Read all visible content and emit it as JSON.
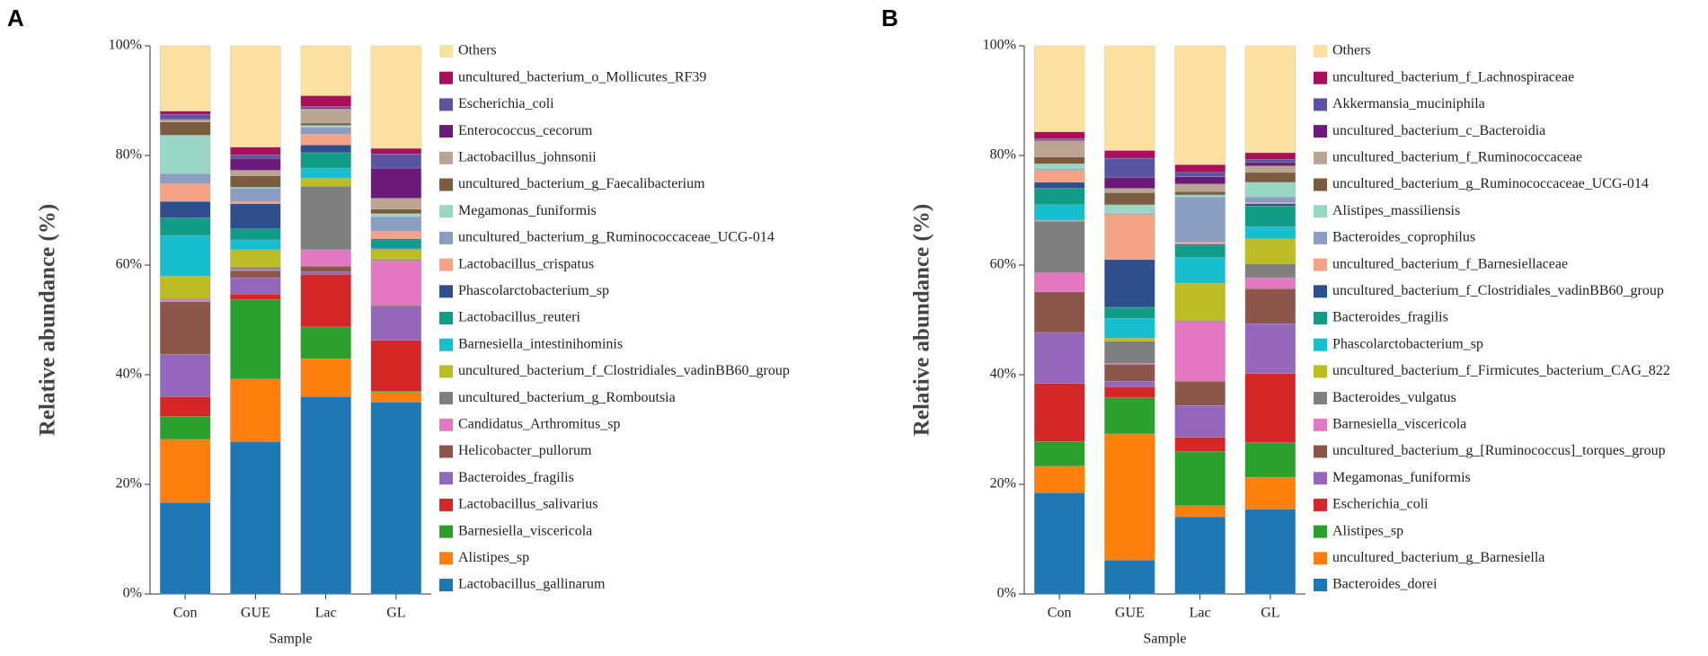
{
  "chart_data": [
    {
      "type": "bar",
      "stacked": true,
      "label": "A",
      "ylabel": "Relative abundance (%)",
      "xlabel": "Sample",
      "categories": [
        "Con",
        "GUE",
        "Lac",
        "GL"
      ],
      "ylim": [
        0,
        100
      ],
      "yticks": [
        {
          "value": 0,
          "label": "0%"
        },
        {
          "value": 20,
          "label": "20%"
        },
        {
          "value": 40,
          "label": "40%"
        },
        {
          "value": 60,
          "label": "60%"
        },
        {
          "value": 80,
          "label": "80%"
        },
        {
          "value": 100,
          "label": "100%"
        }
      ],
      "series": [
        {
          "name": "Lactobacillus_gallinarum",
          "color": "#1f77b4",
          "values": [
            16.7,
            27.8,
            36.0,
            35.0
          ]
        },
        {
          "name": "Alistipes_sp",
          "color": "#ff7f0e",
          "values": [
            11.5,
            11.4,
            6.9,
            1.8
          ]
        },
        {
          "name": "Barnesiella_viscericola",
          "color": "#2ca02c",
          "values": [
            4.2,
            14.5,
            5.8,
            0.2
          ]
        },
        {
          "name": "Lactobacillus_salivarius",
          "color": "#d62728",
          "values": [
            3.6,
            1.0,
            9.6,
            9.3
          ]
        },
        {
          "name": "Bacteroides_fragilis",
          "color": "#9467bd",
          "values": [
            7.7,
            3.0,
            0.5,
            6.2
          ]
        },
        {
          "name": "Helicobacter_pullorum",
          "color": "#8c564b",
          "values": [
            9.6,
            1.3,
            1.0,
            0.2
          ]
        },
        {
          "name": "Candidatus_Arthromitus_sp",
          "color": "#e377c2",
          "values": [
            0.4,
            0.2,
            3.0,
            8.1
          ]
        },
        {
          "name": "uncultured_bacterium_g_Romboutsia",
          "color": "#7f7f7f",
          "values": [
            0.2,
            0.4,
            11.6,
            0.2
          ]
        },
        {
          "name": "uncultured_bacterium_f_Clostridiales_vadinBB60_group",
          "color": "#bcbd22",
          "values": [
            4.1,
            3.2,
            1.5,
            1.8
          ]
        },
        {
          "name": "Barnesiella_intestinihominis",
          "color": "#17becf",
          "values": [
            7.4,
            1.8,
            1.8,
            0.2
          ]
        },
        {
          "name": "Lactobacillus_reuteri",
          "color": "#109d87",
          "values": [
            3.2,
            2.0,
            2.8,
            1.6
          ]
        },
        {
          "name": "Phascolarctobacterium_sp",
          "color": "#2e4f8e",
          "values": [
            3.0,
            4.6,
            1.4,
            0.2
          ]
        },
        {
          "name": "Lactobacillus_crispatus",
          "color": "#f4a386",
          "values": [
            3.3,
            0.4,
            2.0,
            1.4
          ]
        },
        {
          "name": "uncultured_bacterium_g_Ruminococcaceae_UCG-014",
          "color": "#8b9dc3",
          "values": [
            1.8,
            2.4,
            1.2,
            2.6
          ]
        },
        {
          "name": "Megamonas_funiformis",
          "color": "#9ad6c6",
          "values": [
            7.0,
            0.2,
            0.4,
            0.6
          ]
        },
        {
          "name": "uncultured_bacterium_g_Faecalibacterium",
          "color": "#7b5c3e",
          "values": [
            2.4,
            2.1,
            0.4,
            0.8
          ]
        },
        {
          "name": "Lactobacillus_johnsonii",
          "color": "#b9a591",
          "values": [
            0.4,
            1.0,
            2.6,
            2.0
          ]
        },
        {
          "name": "Enterococcus_cecorum",
          "color": "#6b1a7b",
          "values": [
            0.2,
            2.2,
            0.2,
            5.5
          ]
        },
        {
          "name": "Escherichia_coli",
          "color": "#5a55a2",
          "values": [
            0.8,
            0.6,
            0.2,
            2.6
          ]
        },
        {
          "name": "uncultured_bacterium_o_Mollicutes_RF39",
          "color": "#a8105c",
          "values": [
            0.6,
            1.4,
            2.0,
            1.0
          ]
        },
        {
          "name": "Others",
          "color": "#fde0a0",
          "values": [
            11.9,
            18.5,
            9.1,
            18.7
          ]
        }
      ]
    },
    {
      "type": "bar",
      "stacked": true,
      "label": "B",
      "ylabel": "Relative abundance (%)",
      "xlabel": "Sample",
      "categories": [
        "Con",
        "GUE",
        "Lac",
        "GL"
      ],
      "ylim": [
        0,
        100
      ],
      "yticks": [
        {
          "value": 0,
          "label": "0%"
        },
        {
          "value": 20,
          "label": "20%"
        },
        {
          "value": 40,
          "label": "40%"
        },
        {
          "value": 60,
          "label": "60%"
        },
        {
          "value": 80,
          "label": "80%"
        },
        {
          "value": 100,
          "label": "100%"
        }
      ],
      "series": [
        {
          "name": "Bacteroides_dorei",
          "color": "#1f77b4",
          "values": [
            18.5,
            6.2,
            14.1,
            15.5
          ]
        },
        {
          "name": "uncultured_bacterium_g_Barnesiella",
          "color": "#ff7f0e",
          "values": [
            4.8,
            23.0,
            2.0,
            5.8
          ]
        },
        {
          "name": "Alistipes_sp",
          "color": "#2ca02c",
          "values": [
            4.5,
            6.6,
            9.9,
            6.3
          ]
        },
        {
          "name": "Escherichia_coli",
          "color": "#d62728",
          "values": [
            10.6,
            2.0,
            2.6,
            12.6
          ]
        },
        {
          "name": "Megamonas_funiformis",
          "color": "#9467bd",
          "values": [
            9.3,
            1.0,
            5.8,
            9.1
          ]
        },
        {
          "name": "uncultured_bacterium_g_[Ruminococcus]_torques_group",
          "color": "#8c564b",
          "values": [
            7.4,
            3.1,
            4.4,
            6.4
          ]
        },
        {
          "name": "Barnesiella_viscericola",
          "color": "#e377c2",
          "values": [
            3.5,
            0.2,
            10.9,
            2.0
          ]
        },
        {
          "name": "Bacteroides_vulgatus",
          "color": "#7f7f7f",
          "values": [
            9.4,
            4.0,
            0.2,
            2.5
          ]
        },
        {
          "name": "uncultured_bacterium_f_Firmicutes_bacterium_CAG_822",
          "color": "#bcbd22",
          "values": [
            0.2,
            0.6,
            6.8,
            4.6
          ]
        },
        {
          "name": "Phascolarctobacterium_sp",
          "color": "#17becf",
          "values": [
            2.8,
            3.6,
            4.7,
            2.2
          ]
        },
        {
          "name": "Bacteroides_fragilis",
          "color": "#109d87",
          "values": [
            3.0,
            2.0,
            2.2,
            3.8
          ]
        },
        {
          "name": "uncultured_bacterium_f_Clostridiales_vadinBB60_group",
          "color": "#2e4f8e",
          "values": [
            1.1,
            8.7,
            0.2,
            0.4
          ]
        },
        {
          "name": "uncultured_bacterium_f_Barnesiellaceae",
          "color": "#f4a386",
          "values": [
            2.2,
            8.2,
            0.4,
            0.2
          ]
        },
        {
          "name": "Bacteroides_coprophilus",
          "color": "#8b9dc3",
          "values": [
            0.2,
            0.2,
            8.2,
            1.0
          ]
        },
        {
          "name": "Alistipes_massiliensis",
          "color": "#9ad6c6",
          "values": [
            1.0,
            1.6,
            0.4,
            2.7
          ]
        },
        {
          "name": "uncultured_bacterium_g_Ruminococcaceae_UCG-014",
          "color": "#7b5c3e",
          "values": [
            1.2,
            2.2,
            0.6,
            1.8
          ]
        },
        {
          "name": "uncultured_bacterium_f_Ruminococcaceae",
          "color": "#b9a591",
          "values": [
            3.0,
            0.8,
            1.4,
            1.2
          ]
        },
        {
          "name": "uncultured_bacterium_c_Bacteroidia",
          "color": "#6b1a7b",
          "values": [
            0.2,
            2.0,
            1.3,
            0.6
          ]
        },
        {
          "name": "Akkermansia_muciniphila",
          "color": "#5a55a2",
          "values": [
            0.2,
            3.5,
            0.8,
            0.6
          ]
        },
        {
          "name": "uncultured_bacterium_f_Lachnospiraceae",
          "color": "#a8105c",
          "values": [
            1.2,
            1.4,
            1.4,
            1.2
          ]
        },
        {
          "name": "Others",
          "color": "#fde0a0",
          "values": [
            15.7,
            19.1,
            21.7,
            19.5
          ]
        }
      ]
    }
  ]
}
